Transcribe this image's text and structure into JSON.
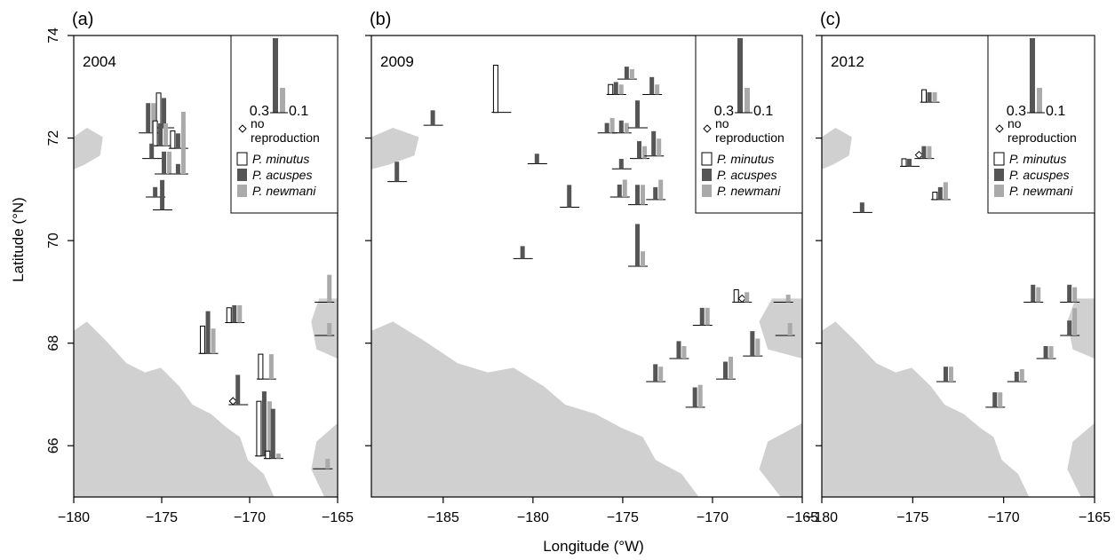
{
  "figure": {
    "xlabel": "Longitude (°W)",
    "ylabel": "Latitude (°N)"
  },
  "colors": {
    "minutus": "#ffffff",
    "acuspes": "#555555",
    "newmani": "#aaaaaa",
    "land": "#d0d0d0"
  },
  "legend": {
    "scale_left": "0.3",
    "scale_right": "0.1",
    "no_repro_1": "no",
    "no_repro_2": "reproduction",
    "species": [
      "P. minutus",
      "P. acuspes",
      "P. newmani"
    ]
  },
  "chart_data": [
    {
      "type": "bar",
      "panel": "(a)",
      "year": "2004",
      "xlim": [
        -180,
        -165
      ],
      "ylim": [
        65,
        74
      ],
      "xticks": [
        -180,
        -175,
        -170,
        -165
      ],
      "yticks": [
        66,
        68,
        70,
        72,
        74
      ],
      "stations": [
        {
          "lon": -176.2,
          "lat": 72.1,
          "m": 0,
          "a": 0.12,
          "n": 0.12
        },
        {
          "lon": -175.3,
          "lat": 72.2,
          "m": 0.14,
          "a": 0.12,
          "n": 0
        },
        {
          "lon": -174.5,
          "lat": 71.8,
          "m": 0.07,
          "a": 0.06,
          "n": 0.09
        },
        {
          "lon": -175.5,
          "lat": 71.85,
          "m": 0.1,
          "a": 0.09,
          "n": 0.09
        },
        {
          "lon": -176,
          "lat": 71.6,
          "m": 0,
          "a": 0.06,
          "n": 0
        },
        {
          "lon": -175.3,
          "lat": 71.3,
          "m": 0,
          "a": 0.09,
          "n": 0.09
        },
        {
          "lon": -174.5,
          "lat": 71.3,
          "m": 0,
          "a": 0.04,
          "n": 0.25
        },
        {
          "lon": -175.8,
          "lat": 70.85,
          "m": 0,
          "a": 0.04,
          "n": 0
        },
        {
          "lon": -175.4,
          "lat": 70.6,
          "m": 0,
          "a": 0.12,
          "n": 0
        },
        {
          "lon": -172.8,
          "lat": 67.8,
          "m": 0.11,
          "a": 0.17,
          "n": 0.1
        },
        {
          "lon": -171.3,
          "lat": 68.4,
          "m": 0.06,
          "a": 0.07,
          "n": 0.07
        },
        {
          "lon": -169.5,
          "lat": 67.3,
          "m": 0.1,
          "a": 0,
          "n": 0.1
        },
        {
          "lon": -171.1,
          "lat": 66.8,
          "m": 0,
          "a": 0.12,
          "n": 0,
          "no_repro_m": true
        },
        {
          "lon": -169.6,
          "lat": 65.8,
          "m": 0.22,
          "a": 0.26,
          "n": 0.22
        },
        {
          "lon": -169.1,
          "lat": 65.75,
          "m": 0.03,
          "a": 0.2,
          "n": 0.02
        },
        {
          "lon": -166.3,
          "lat": 65.55,
          "m": 0,
          "a": 0,
          "n": 0.04
        },
        {
          "lon": -166.2,
          "lat": 68.8,
          "m": 0,
          "a": 0,
          "n": 0.11
        },
        {
          "lon": -166.2,
          "lat": 68.15,
          "m": 0,
          "a": 0,
          "n": 0.05
        }
      ]
    },
    {
      "type": "bar",
      "panel": "(b)",
      "year": "2009",
      "xlim": [
        -189,
        -165
      ],
      "ylim": [
        65,
        74
      ],
      "xticks": [
        -185,
        -180,
        -175,
        -170,
        -165
      ],
      "yticks": [
        66,
        68,
        70,
        72,
        74
      ],
      "stations": [
        {
          "lon": -182.2,
          "lat": 72.5,
          "m": 0.19,
          "a": 0,
          "n": 0
        },
        {
          "lon": -186,
          "lat": 72.25,
          "m": 0,
          "a": 0.06,
          "n": 0
        },
        {
          "lon": -188,
          "lat": 71.15,
          "m": 0,
          "a": 0.08,
          "n": 0
        },
        {
          "lon": -180.2,
          "lat": 71.5,
          "m": 0,
          "a": 0.04,
          "n": 0
        },
        {
          "lon": -178.4,
          "lat": 70.65,
          "m": 0,
          "a": 0.09,
          "n": 0
        },
        {
          "lon": -181,
          "lat": 69.65,
          "m": 0,
          "a": 0.05,
          "n": 0
        },
        {
          "lon": -175.8,
          "lat": 72.85,
          "m": 0.04,
          "a": 0.05,
          "n": 0.04
        },
        {
          "lon": -175.2,
          "lat": 73.15,
          "m": 0,
          "a": 0.05,
          "n": 0.04
        },
        {
          "lon": -173.8,
          "lat": 72.85,
          "m": 0,
          "a": 0.07,
          "n": 0.04
        },
        {
          "lon": -176.3,
          "lat": 72.1,
          "m": 0,
          "a": 0.04,
          "n": 0.06
        },
        {
          "lon": -175.5,
          "lat": 72.1,
          "m": 0,
          "a": 0.05,
          "n": 0.04
        },
        {
          "lon": -174.6,
          "lat": 72.2,
          "m": 0,
          "a": 0.11,
          "n": 0
        },
        {
          "lon": -175.5,
          "lat": 71.4,
          "m": 0,
          "a": 0.04,
          "n": 0
        },
        {
          "lon": -174.5,
          "lat": 71.6,
          "m": 0,
          "a": 0.07,
          "n": 0.05
        },
        {
          "lon": -173.7,
          "lat": 71.65,
          "m": 0,
          "a": 0.1,
          "n": 0.07
        },
        {
          "lon": -175.6,
          "lat": 70.85,
          "m": 0,
          "a": 0.05,
          "n": 0.07
        },
        {
          "lon": -174.6,
          "lat": 70.7,
          "m": 0,
          "a": 0.08,
          "n": 0.08
        },
        {
          "lon": -173.6,
          "lat": 70.8,
          "m": 0,
          "a": 0.05,
          "n": 0.08
        },
        {
          "lon": -174.6,
          "lat": 69.5,
          "m": 0,
          "a": 0.17,
          "n": 0.06
        },
        {
          "lon": -168.8,
          "lat": 68.8,
          "m": 0.05,
          "a": 0,
          "n": 0.04,
          "no_repro_a": true
        },
        {
          "lon": -166.5,
          "lat": 68.8,
          "m": 0,
          "a": 0,
          "n": 0.03
        },
        {
          "lon": -171,
          "lat": 68.35,
          "m": 0,
          "a": 0.07,
          "n": 0.07
        },
        {
          "lon": -172.3,
          "lat": 67.7,
          "m": 0,
          "a": 0.07,
          "n": 0.05
        },
        {
          "lon": -173.6,
          "lat": 67.25,
          "m": 0,
          "a": 0.07,
          "n": 0.06
        },
        {
          "lon": -171.4,
          "lat": 66.75,
          "m": 0,
          "a": 0.08,
          "n": 0.09
        },
        {
          "lon": -169.7,
          "lat": 67.3,
          "m": 0,
          "a": 0.07,
          "n": 0.09
        },
        {
          "lon": -168.2,
          "lat": 67.75,
          "m": 0,
          "a": 0.1,
          "n": 0.07
        },
        {
          "lon": -166.4,
          "lat": 68.15,
          "m": 0,
          "a": 0,
          "n": 0.05
        }
      ]
    },
    {
      "type": "bar",
      "panel": "(c)",
      "year": "2012",
      "xlim": [
        -180,
        -165
      ],
      "ylim": [
        65,
        74
      ],
      "xticks": [
        -180,
        -175,
        -170,
        -165
      ],
      "yticks": [
        66,
        68,
        70,
        72,
        74
      ],
      "stations": [
        {
          "lon": -174.5,
          "lat": 72.7,
          "m": 0.05,
          "a": 0.04,
          "n": 0.04
        },
        {
          "lon": -174.8,
          "lat": 71.6,
          "m": 0,
          "a": 0.05,
          "n": 0.05,
          "no_repro_m": true
        },
        {
          "lon": -175.6,
          "lat": 71.45,
          "m": 0.03,
          "a": 0.03,
          "n": 0
        },
        {
          "lon": -173.9,
          "lat": 70.8,
          "m": 0.03,
          "a": 0.05,
          "n": 0.07
        },
        {
          "lon": -178.2,
          "lat": 70.55,
          "m": 0,
          "a": 0.04,
          "n": 0
        },
        {
          "lon": -168.8,
          "lat": 68.8,
          "m": 0,
          "a": 0.07,
          "n": 0.06
        },
        {
          "lon": -166.8,
          "lat": 68.8,
          "m": 0,
          "a": 0.07,
          "n": 0.06
        },
        {
          "lon": -166.8,
          "lat": 68.15,
          "m": 0,
          "a": 0.06,
          "n": 0.11
        },
        {
          "lon": -168.1,
          "lat": 67.7,
          "m": 0,
          "a": 0.05,
          "n": 0.05
        },
        {
          "lon": -169.7,
          "lat": 67.25,
          "m": 0,
          "a": 0.04,
          "n": 0.05
        },
        {
          "lon": -173.6,
          "lat": 67.25,
          "m": 0,
          "a": 0.06,
          "n": 0.06
        },
        {
          "lon": -170.9,
          "lat": 66.75,
          "m": 0,
          "a": 0.06,
          "n": 0.06
        }
      ]
    }
  ]
}
